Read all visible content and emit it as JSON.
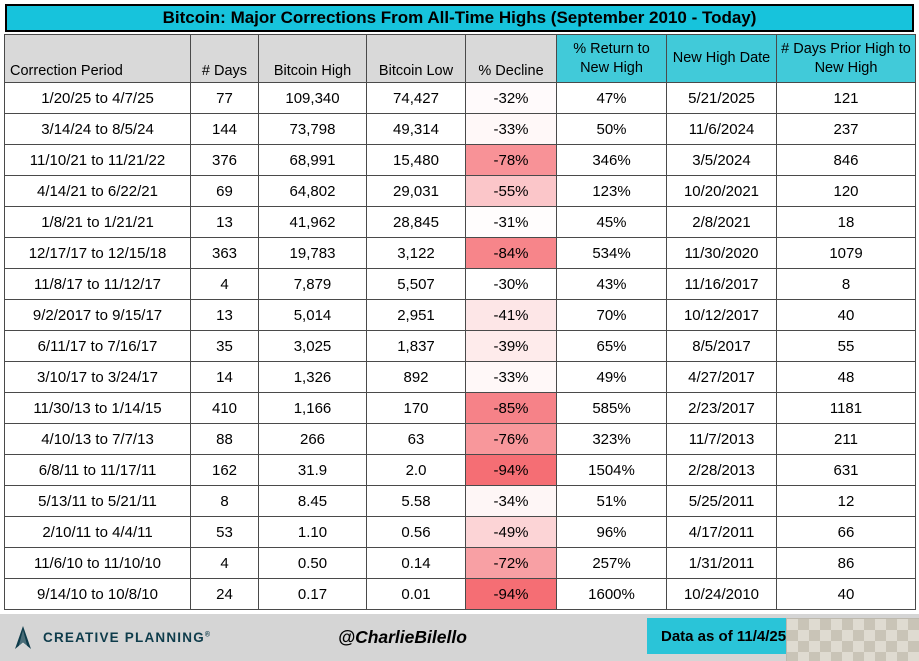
{
  "title": "Bitcoin: Major Corrections From All-Time Highs (September 2010 - Today)",
  "colors": {
    "title_bg": "#17C3DC",
    "header_gray": "#D9D9D9",
    "header_cyan": "#41CAD9",
    "footer_bg": "#D5D5D5",
    "footer_cyan": "#2AC4D8",
    "logo_color": "#0E3C4B"
  },
  "chart_data": {
    "type": "table",
    "title": "Bitcoin: Major Corrections From All-Time Highs (September 2010 - Today)",
    "columns": [
      "Correction Period",
      "# Days",
      "Bitcoin High",
      "Bitcoin Low",
      "% Decline",
      "% Return to New High",
      "New High Date",
      "# Days Prior High to New High"
    ],
    "decline_color_scale": {
      "min_abs": 30,
      "max_abs": 94,
      "min_color": "#FFFFFF",
      "max_color": "#F56E74"
    },
    "rows": [
      [
        "1/20/25 to 4/7/25",
        "77",
        "109,340",
        "74,427",
        "-32%",
        "47%",
        "5/21/2025",
        "121"
      ],
      [
        "3/14/24 to 8/5/24",
        "144",
        "73,798",
        "49,314",
        "-33%",
        "50%",
        "11/6/2024",
        "237"
      ],
      [
        "11/10/21 to 11/21/22",
        "376",
        "68,991",
        "15,480",
        "-78%",
        "346%",
        "3/5/2024",
        "846"
      ],
      [
        "4/14/21 to 6/22/21",
        "69",
        "64,802",
        "29,031",
        "-55%",
        "123%",
        "10/20/2021",
        "120"
      ],
      [
        "1/8/21 to 1/21/21",
        "13",
        "41,962",
        "28,845",
        "-31%",
        "45%",
        "2/8/2021",
        "18"
      ],
      [
        "12/17/17 to 12/15/18",
        "363",
        "19,783",
        "3,122",
        "-84%",
        "534%",
        "11/30/2020",
        "1079"
      ],
      [
        "11/8/17 to 11/12/17",
        "4",
        "7,879",
        "5,507",
        "-30%",
        "43%",
        "11/16/2017",
        "8"
      ],
      [
        "9/2/2017 to 9/15/17",
        "13",
        "5,014",
        "2,951",
        "-41%",
        "70%",
        "10/12/2017",
        "40"
      ],
      [
        "6/11/17 to 7/16/17",
        "35",
        "3,025",
        "1,837",
        "-39%",
        "65%",
        "8/5/2017",
        "55"
      ],
      [
        "3/10/17 to 3/24/17",
        "14",
        "1,326",
        "892",
        "-33%",
        "49%",
        "4/27/2017",
        "48"
      ],
      [
        "11/30/13 to 1/14/15",
        "410",
        "1,166",
        "170",
        "-85%",
        "585%",
        "2/23/2017",
        "1181"
      ],
      [
        "4/10/13 to 7/7/13",
        "88",
        "266",
        "63",
        "-76%",
        "323%",
        "11/7/2013",
        "211"
      ],
      [
        "6/8/11 to 11/17/11",
        "162",
        "31.9",
        "2.0",
        "-94%",
        "1504%",
        "2/28/2013",
        "631"
      ],
      [
        "5/13/11 to 5/21/11",
        "8",
        "8.45",
        "5.58",
        "-34%",
        "51%",
        "5/25/2011",
        "12"
      ],
      [
        "2/10/11 to 4/4/11",
        "53",
        "1.10",
        "0.56",
        "-49%",
        "96%",
        "4/17/2011",
        "66"
      ],
      [
        "11/6/10 to 11/10/10",
        "4",
        "0.50",
        "0.14",
        "-72%",
        "257%",
        "1/31/2011",
        "86"
      ],
      [
        "9/14/10 to 10/8/10",
        "24",
        "0.17",
        "0.01",
        "-94%",
        "1600%",
        "10/24/2010",
        "40"
      ]
    ]
  },
  "footer": {
    "logo_text": "CREATIVE PLANNING",
    "trademark": "®",
    "handle": "@CharlieBilello",
    "data_as_of": "Data as of 11/4/25"
  }
}
